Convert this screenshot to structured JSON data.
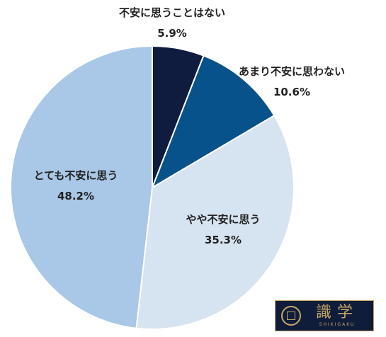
{
  "chart_data": {
    "type": "pie",
    "title": "",
    "slices": [
      {
        "label": "不安に思うことはない",
        "value": 5.9,
        "value_label": "5.9%",
        "color": "#0f1c3f"
      },
      {
        "label": "あまり不安に思わない",
        "value": 10.6,
        "value_label": "10.6%",
        "color": "#08528c"
      },
      {
        "label": "やや不安に思う",
        "value": 35.3,
        "value_label": "35.3%",
        "color": "#d6e3f1"
      },
      {
        "label": "とても不安に思う",
        "value": 48.2,
        "value_label": "48.2%",
        "color": "#a9c7e7"
      }
    ],
    "start_angle": "12 o'clock",
    "direction": "clockwise",
    "legend": "none"
  },
  "logo": {
    "text": "識学",
    "subtext": "SHIKIGAKU",
    "background": "#0f1c3a",
    "accent": "#c6a764"
  }
}
